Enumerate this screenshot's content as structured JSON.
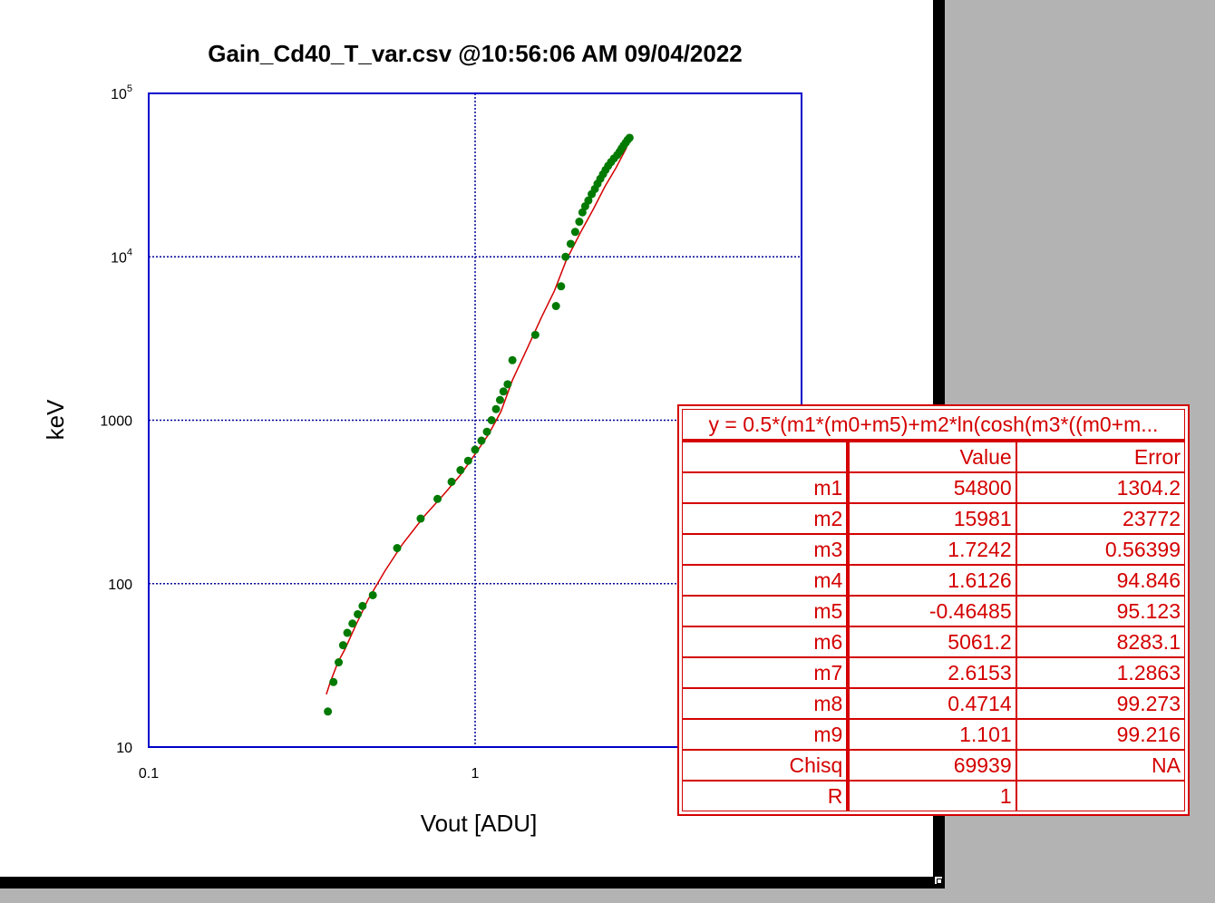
{
  "chart_data": {
    "type": "scatter",
    "title": "Gain_Cd40_T_var.csv  @10:56:06 AM 09/04/2022",
    "xlabel": "Vout [ADU]",
    "ylabel": "keV",
    "xscale": "log",
    "yscale": "log",
    "xlim": [
      0.1,
      10
    ],
    "ylim": [
      10,
      100000
    ],
    "x_ticks": [
      "0.1",
      "1"
    ],
    "y_ticks": [
      {
        "base": "10",
        "exp": "5"
      },
      {
        "base": "10",
        "exp": "4"
      },
      {
        "base": "1000",
        "exp": ""
      },
      {
        "base": "100",
        "exp": ""
      },
      {
        "base": "10",
        "exp": ""
      }
    ],
    "grid": true,
    "colors": {
      "points": "#007a00",
      "fit": "#d40000",
      "frame": "#0000cc",
      "grid": "#00009a"
    },
    "series": [
      {
        "x": [
          0.354,
          0.368,
          0.382,
          0.394,
          0.406,
          0.421,
          0.437,
          0.452,
          0.486,
          0.577,
          0.681,
          0.767,
          0.847,
          0.902,
          0.952,
          1.0,
          1.046,
          1.087,
          1.123,
          1.159,
          1.192,
          1.221,
          1.258,
          1.301,
          1.529,
          1.769,
          1.834,
          1.892,
          1.962,
          2.026,
          2.085,
          2.132,
          2.174,
          2.223,
          2.276,
          2.327,
          2.371,
          2.418,
          2.465,
          2.509,
          2.556,
          2.609,
          2.664,
          2.725,
          2.772,
          2.811,
          2.851,
          2.894,
          2.934,
          2.973
        ],
        "y": [
          16.5,
          25,
          33,
          42,
          50,
          57,
          65,
          73,
          85,
          165,
          250,
          330,
          420,
          495,
          565,
          660,
          750,
          850,
          1000,
          1170,
          1330,
          1500,
          1660,
          2330,
          3330,
          5000,
          6600,
          10000,
          12000,
          14200,
          16400,
          18700,
          20400,
          22100,
          24200,
          26000,
          28000,
          30000,
          32000,
          34000,
          36000,
          38000,
          40000,
          42000,
          44000,
          46000,
          48000,
          50000,
          52000,
          53500
        ]
      }
    ],
    "fit_curve": {
      "x": [
        0.35,
        0.36,
        0.38,
        0.4,
        0.43,
        0.47,
        0.53,
        0.6,
        0.7,
        0.8,
        0.9,
        1.0,
        1.1,
        1.2,
        1.3,
        1.45,
        1.6,
        1.75,
        1.9,
        2.1,
        2.3,
        2.5,
        2.7,
        2.9,
        2.97
      ],
      "y": [
        21,
        25,
        33,
        40,
        55,
        80,
        120,
        175,
        260,
        350,
        460,
        620,
        820,
        1130,
        1750,
        2800,
        4300,
        6200,
        9500,
        14000,
        19500,
        27000,
        35000,
        46000,
        53000
      ]
    }
  },
  "fit_table": {
    "equation": "y = 0.5*(m1*(m0+m5)+m2*ln(cosh(m3*((m0+m...",
    "header": [
      "",
      "Value",
      "Error"
    ],
    "rows": [
      [
        "m1",
        "54800",
        "1304.2"
      ],
      [
        "m2",
        "15981",
        "23772"
      ],
      [
        "m3",
        "1.7242",
        "0.56399"
      ],
      [
        "m4",
        "1.6126",
        "94.846"
      ],
      [
        "m5",
        "-0.46485",
        "95.123"
      ],
      [
        "m6",
        "5061.2",
        "8283.1"
      ],
      [
        "m7",
        "2.6153",
        "1.2863"
      ],
      [
        "m8",
        "0.4714",
        "99.273"
      ],
      [
        "m9",
        "1.101",
        "99.216"
      ],
      [
        "Chisq",
        "69939",
        "NA"
      ],
      [
        "R",
        "1",
        ""
      ]
    ]
  }
}
